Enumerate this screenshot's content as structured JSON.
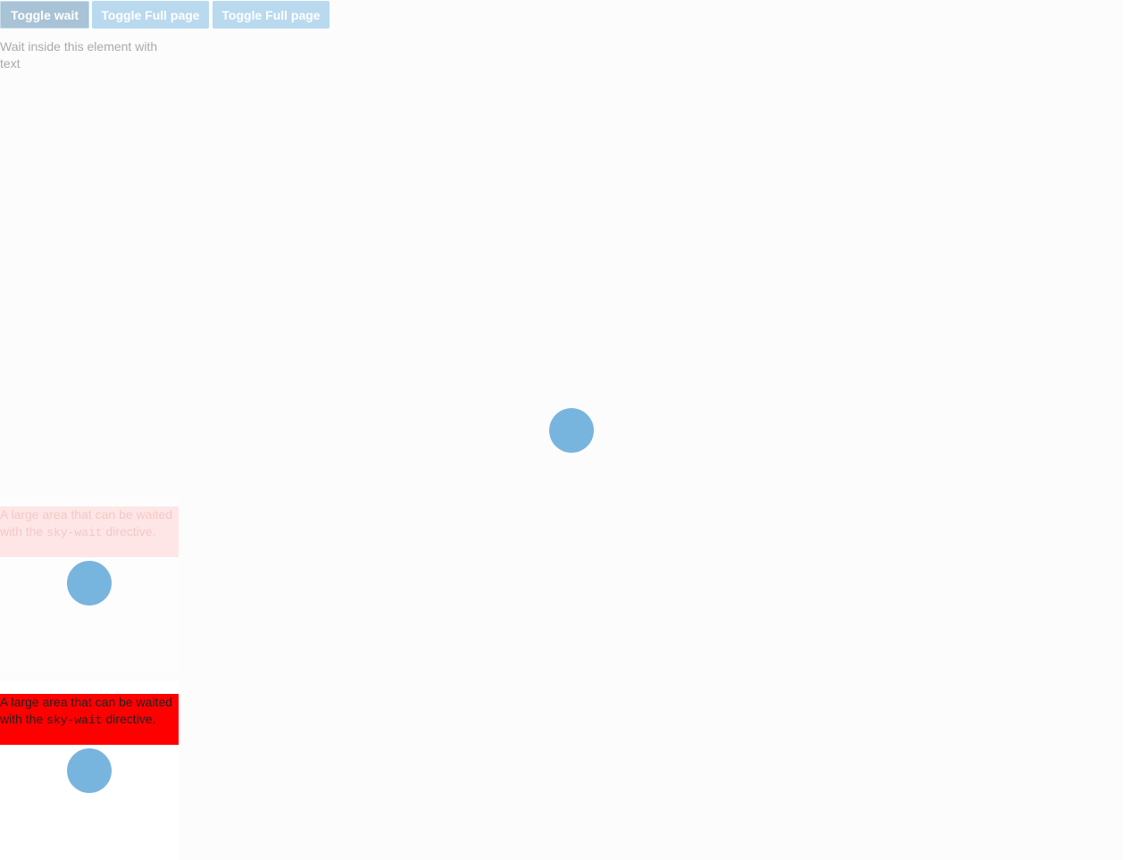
{
  "buttons": [
    "Toggle wait",
    "Toggle Full page",
    "Toggle Full page"
  ],
  "element_wait": {
    "text": "Wait inside this element with text"
  },
  "areas": [
    {
      "text_before": "A large area that can be waited with the",
      "code": "sky-wait",
      "text_after": "directive."
    },
    {
      "text_before": "A large area that can be waited with the",
      "code": "sky-wait",
      "text_after": "directive."
    }
  ]
}
